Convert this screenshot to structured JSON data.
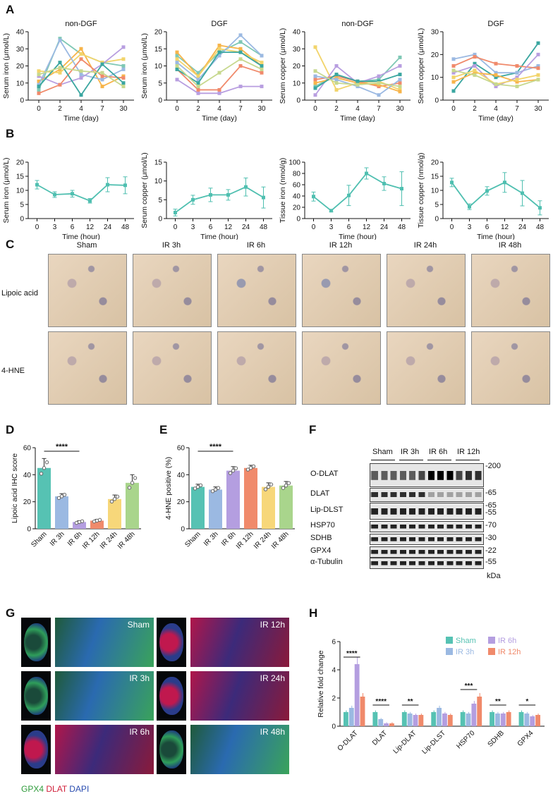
{
  "panel_labels": [
    "A",
    "B",
    "C",
    "D",
    "E",
    "F",
    "G",
    "H"
  ],
  "chart_data": [
    {
      "id": "A1",
      "type": "line",
      "title": "non-DGF",
      "xlabel": "Time (day)",
      "ylabel": "Serum iron (μmol/L)",
      "x": [
        "0",
        "2",
        "4",
        "7",
        "30"
      ],
      "ylim": [
        0,
        40
      ],
      "yticks": [
        0,
        10,
        20,
        30,
        40
      ],
      "series": [
        {
          "color": "#7fc8b5",
          "values": [
            6,
            36,
            27,
            22,
            20
          ]
        },
        {
          "color": "#f7b44a",
          "values": [
            11,
            18,
            30,
            8,
            14
          ]
        },
        {
          "color": "#f2d46b",
          "values": [
            17,
            16,
            27,
            22,
            24
          ]
        },
        {
          "color": "#9bb9e2",
          "values": [
            9,
            35,
            15,
            12,
            18
          ]
        },
        {
          "color": "#b89ee0",
          "values": [
            14,
            9,
            13,
            21,
            31
          ]
        },
        {
          "color": "#f08a6b",
          "values": [
            4,
            9,
            24,
            14,
            13
          ]
        },
        {
          "color": "#3aa6a0",
          "values": [
            8,
            22,
            3,
            21,
            10
          ]
        },
        {
          "color": "#c7d88e",
          "values": [
            15,
            19,
            17,
            16,
            8
          ]
        }
      ]
    },
    {
      "id": "A2",
      "type": "line",
      "title": "DGF",
      "xlabel": "Time (day)",
      "ylabel": "Serum iron (μmol/L)",
      "x": [
        "0",
        "2",
        "4",
        "7",
        "30"
      ],
      "ylim": [
        0,
        20
      ],
      "yticks": [
        0,
        5,
        10,
        15,
        20
      ],
      "series": [
        {
          "color": "#7fc8b5",
          "values": [
            13,
            8,
            14,
            17,
            13
          ]
        },
        {
          "color": "#f7b44a",
          "values": [
            14,
            7,
            16,
            15,
            10
          ]
        },
        {
          "color": "#f2d46b",
          "values": [
            12,
            7,
            15,
            14,
            11
          ]
        },
        {
          "color": "#9bb9e2",
          "values": [
            11,
            6,
            13,
            19,
            13
          ]
        },
        {
          "color": "#b89ee0",
          "values": [
            6,
            2,
            2,
            4,
            4
          ]
        },
        {
          "color": "#f08a6b",
          "values": [
            9,
            3,
            3,
            10,
            8
          ]
        },
        {
          "color": "#3aa6a0",
          "values": [
            9,
            5,
            14,
            14,
            10
          ]
        },
        {
          "color": "#c7d88e",
          "values": [
            10,
            4,
            8,
            12,
            9
          ]
        }
      ]
    },
    {
      "id": "A3",
      "type": "line",
      "title": "non-DGF",
      "xlabel": "Time (day)",
      "ylabel": "Serum copper (μmol/L)",
      "x": [
        "0",
        "2",
        "4",
        "7",
        "30"
      ],
      "ylim": [
        0,
        40
      ],
      "yticks": [
        0,
        10,
        20,
        30,
        40
      ],
      "series": [
        {
          "color": "#f2d46b",
          "values": [
            31,
            6,
            10,
            11,
            6
          ]
        },
        {
          "color": "#7fc8b5",
          "values": [
            8,
            15,
            11,
            12,
            25
          ]
        },
        {
          "color": "#b89ee0",
          "values": [
            3,
            20,
            10,
            14,
            20
          ]
        },
        {
          "color": "#f08a6b",
          "values": [
            12,
            14,
            11,
            8,
            10
          ]
        },
        {
          "color": "#f7b44a",
          "values": [
            10,
            13,
            10,
            9,
            5
          ]
        },
        {
          "color": "#9bb9e2",
          "values": [
            14,
            12,
            8,
            3,
            12
          ]
        },
        {
          "color": "#3aa6a0",
          "values": [
            7,
            15,
            11,
            11,
            15
          ]
        },
        {
          "color": "#c7d88e",
          "values": [
            17,
            10,
            9,
            10,
            8
          ]
        }
      ]
    },
    {
      "id": "A4",
      "type": "line",
      "title": "DGF",
      "xlabel": "Time (day)",
      "ylabel": "Serum copper (μmol/L)",
      "x": [
        "0",
        "2",
        "4",
        "7",
        "30"
      ],
      "ylim": [
        0,
        30
      ],
      "yticks": [
        0,
        10,
        20,
        30
      ],
      "series": [
        {
          "color": "#3aa6a0",
          "values": [
            4,
            16,
            10,
            12,
            25
          ]
        },
        {
          "color": "#9bb9e2",
          "values": [
            18,
            20,
            12,
            12,
            15
          ]
        },
        {
          "color": "#f08a6b",
          "values": [
            15,
            19,
            16,
            15,
            14
          ]
        },
        {
          "color": "#b89ee0",
          "values": [
            12,
            15,
            6,
            10,
            20
          ]
        },
        {
          "color": "#f7b44a",
          "values": [
            8,
            12,
            11,
            8,
            9
          ]
        },
        {
          "color": "#f2d46b",
          "values": [
            10,
            13,
            7,
            9,
            11
          ]
        },
        {
          "color": "#c7d88e",
          "values": [
            13,
            11,
            7,
            6,
            9
          ]
        }
      ]
    },
    {
      "id": "B1",
      "type": "line",
      "xlabel": "Time (hour)",
      "ylabel": "Serum iron (μmol/L)",
      "x": [
        "0",
        "3",
        "6",
        "12",
        "24",
        "48"
      ],
      "ylim": [
        0,
        20
      ],
      "yticks": [
        0,
        5,
        10,
        15,
        20
      ],
      "series": [
        {
          "color": "#4fbfb0",
          "values": [
            12,
            8.5,
            8.8,
            6.3,
            12,
            11.8
          ],
          "errors": [
            1.5,
            1,
            1.2,
            0.8,
            2.5,
            3
          ]
        }
      ]
    },
    {
      "id": "B2",
      "type": "line",
      "xlabel": "Time (hour)",
      "ylabel": "Serum copper (μmol/L)",
      "x": [
        "0",
        "3",
        "6",
        "12",
        "24",
        "48"
      ],
      "ylim": [
        0,
        15
      ],
      "yticks": [
        0,
        5,
        10,
        15
      ],
      "series": [
        {
          "color": "#4fbfb0",
          "values": [
            1.6,
            5,
            6.3,
            6.3,
            8.4,
            5.6
          ],
          "errors": [
            0.9,
            1.2,
            1.8,
            1.4,
            2.4,
            2.8
          ]
        }
      ]
    },
    {
      "id": "B3",
      "type": "line",
      "xlabel": "Time (hour)",
      "ylabel": "Tissue iron (nmol/g)",
      "x": [
        "0",
        "3",
        "6",
        "12",
        "24",
        "48"
      ],
      "ylim": [
        0,
        100
      ],
      "yticks": [
        0,
        20,
        40,
        60,
        80,
        100
      ],
      "series": [
        {
          "color": "#4fbfb0",
          "values": [
            39,
            14,
            41,
            80,
            62,
            53
          ],
          "errors": [
            8,
            2,
            18,
            10,
            12,
            30
          ]
        }
      ]
    },
    {
      "id": "B4",
      "type": "line",
      "xlabel": "Time (hour)",
      "ylabel": "Tissue copper (nmol/g)",
      "x": [
        "0",
        "3",
        "6",
        "12",
        "24",
        "48"
      ],
      "ylim": [
        0,
        20
      ],
      "yticks": [
        0,
        5,
        10,
        15,
        20
      ],
      "series": [
        {
          "color": "#4fbfb0",
          "values": [
            12.8,
            4.2,
            9.8,
            12.8,
            9,
            3.8
          ],
          "errors": [
            1.5,
            1,
            1.5,
            3.5,
            4.5,
            2.5
          ]
        }
      ]
    },
    {
      "id": "D",
      "type": "bar",
      "ylabel": "Lipoic acid IHC score",
      "categories": [
        "Sham",
        "IR 3h",
        "IR 6h",
        "IR 12h",
        "IR 24h",
        "IR 48h"
      ],
      "values": [
        45,
        24,
        5,
        6,
        22,
        34
      ],
      "errors": [
        7,
        2,
        1,
        1,
        3,
        6
      ],
      "colors": [
        "#56c2b3",
        "#9bb9e2",
        "#b49ee0",
        "#f08a6b",
        "#f7d77a",
        "#a9d58c"
      ],
      "ylim": [
        0,
        60
      ],
      "yticks": [
        0,
        20,
        40,
        60
      ],
      "significance": "****"
    },
    {
      "id": "E",
      "type": "bar",
      "ylabel": "4-HNE positive (%)",
      "categories": [
        "Sham",
        "IR 3h",
        "IR 6h",
        "IR 12h",
        "IR 24h",
        "IR 48h"
      ],
      "values": [
        31,
        29,
        43,
        45,
        31,
        32
      ],
      "errors": [
        2,
        2,
        3,
        2,
        3,
        3
      ],
      "colors": [
        "#56c2b3",
        "#9bb9e2",
        "#b49ee0",
        "#f08a6b",
        "#f7d77a",
        "#a9d58c"
      ],
      "ylim": [
        0,
        60
      ],
      "yticks": [
        0,
        20,
        40,
        60
      ],
      "significance": "****"
    },
    {
      "id": "H",
      "type": "bar",
      "ylabel": "Relative fold change",
      "categories": [
        "O-DLAT",
        "DLAT",
        "Lip-DLAT",
        "Lip-DLST",
        "HSP70",
        "SDHB",
        "GPX4"
      ],
      "ylim": [
        0,
        6
      ],
      "yticks": [
        0,
        2,
        4,
        6
      ],
      "series": [
        {
          "name": "Sham",
          "color": "#56c2b3",
          "values": [
            1,
            1,
            1,
            1,
            1,
            1,
            1
          ]
        },
        {
          "name": "IR 3h",
          "color": "#9bb9e2",
          "values": [
            1.3,
            0.5,
            0.9,
            1.3,
            0.9,
            0.9,
            0.9
          ]
        },
        {
          "name": "IR 6h",
          "color": "#b49ee0",
          "values": [
            4.4,
            0.2,
            0.8,
            0.9,
            1.6,
            0.9,
            0.7
          ]
        },
        {
          "name": "IR 12h",
          "color": "#f08a6b",
          "values": [
            2.1,
            0.2,
            0.8,
            0.8,
            2.1,
            1,
            0.8
          ]
        }
      ],
      "significance": [
        "****",
        "****",
        "**",
        "",
        "***",
        "**",
        "*"
      ]
    }
  ],
  "panelC": {
    "columns": [
      "Sham",
      "IR 3h",
      "IR 6h",
      "IR 12h",
      "IR 24h",
      "IR 48h"
    ],
    "rows": [
      "Lipoic acid",
      "4-HNE"
    ]
  },
  "panelF": {
    "groups": [
      "Sham",
      "IR 3h",
      "IR 6h",
      "IR 12h"
    ],
    "bands": [
      "O-DLAT",
      "DLAT",
      "Lip-DLST",
      "HSP70",
      "SDHB",
      "GPX4",
      "α-Tubulin"
    ],
    "markers": [
      "-200",
      "-65",
      "-65",
      "-55",
      "-70",
      "-30",
      "-22",
      "-55"
    ],
    "unit": "kDa"
  },
  "panelG": {
    "labels": [
      "Sham",
      "IR 3h",
      "IR 6h",
      "IR 12h",
      "IR 24h",
      "IR 48h"
    ],
    "legend": {
      "gpx4": "GPX4",
      "dlat": "DLAT",
      "dapi": "DAPI"
    }
  }
}
